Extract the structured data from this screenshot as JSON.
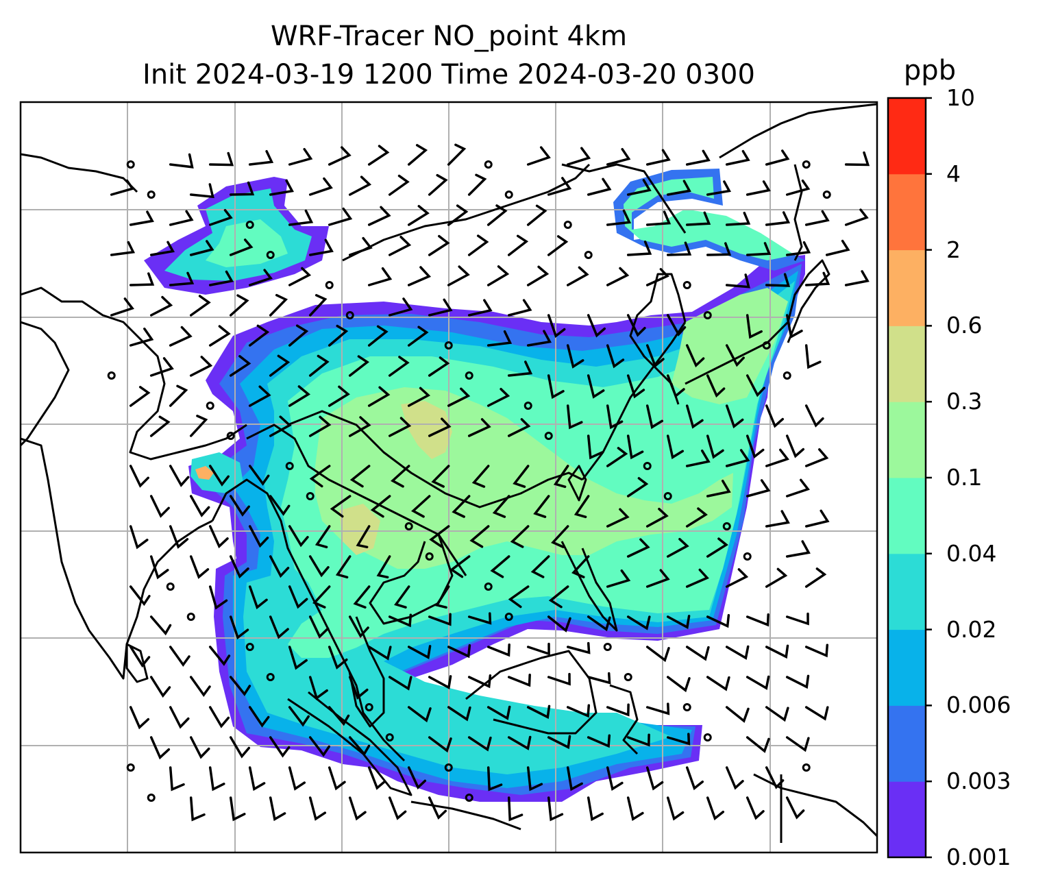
{
  "title": {
    "line1": "WRF-Tracer NO_point 4km",
    "line2": "Init 2024-03-19 1200 Time 2024-03-20 0300"
  },
  "colorbar": {
    "unit": "ppb",
    "levels": [
      "0.001",
      "0.003",
      "0.006",
      "0.02",
      "0.04",
      "0.1",
      "0.3",
      "0.6",
      "2",
      "4",
      "10"
    ],
    "colors": [
      "#6a2ff5",
      "#3473f0",
      "#08b2ea",
      "#2cdcd6",
      "#62fcc0",
      "#9cf89c",
      "#d0e08a",
      "#fdb062",
      "#ff743c",
      "#ff2a14"
    ]
  },
  "map": {
    "gridlines": true,
    "grid_color": "#b0b0b0",
    "coastline_color": "#000000",
    "field_palette_by_level": [
      "#6a2ff5",
      "#3473f0",
      "#08b2ea",
      "#2cdcd6",
      "#62fcc0",
      "#9cf89c",
      "#d0e08a",
      "#fdb062"
    ],
    "wind_barbs": true
  }
}
